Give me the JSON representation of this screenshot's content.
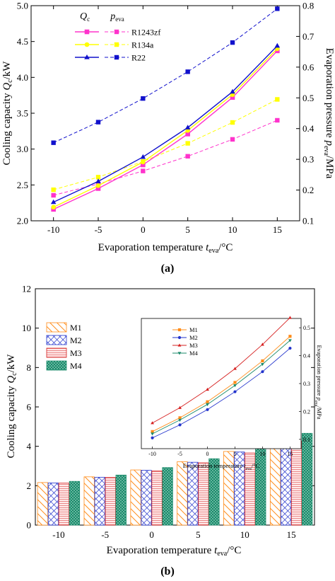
{
  "chart_data": [
    {
      "type": "line",
      "panel_label": "(a)",
      "x": [
        -10,
        -5,
        0,
        5,
        10,
        15
      ],
      "xlabel": "Evaporation temperature",
      "xlabel_sub": "eva",
      "xlabel_unit": "/°C",
      "ylabel_left": "Cooling capacity",
      "ylabel_left_sym": "Q",
      "ylabel_left_sub": "c",
      "ylabel_left_unit": "/kW",
      "ylabel_right": "Evaporation pressure",
      "ylabel_right_sym": "p",
      "ylabel_right_sub": "eva",
      "ylabel_right_unit": "/MPa",
      "xlim": [
        -12.5,
        17.5
      ],
      "ylim_left": [
        2.0,
        5.0
      ],
      "ylim_right": [
        0.1,
        0.8
      ],
      "x_ticks": [
        "-10",
        "-5",
        "0",
        "5",
        "10",
        "15"
      ],
      "y_ticks_left": [
        "2.0",
        "2.5",
        "3.0",
        "3.5",
        "4.0",
        "4.5",
        "5.0"
      ],
      "y_ticks_right": [
        "0.1",
        "0.2",
        "0.3",
        "0.4",
        "0.5",
        "0.6",
        "0.7",
        "0.8"
      ],
      "legend_header_left": "Q",
      "legend_header_left_sub": "c",
      "legend_header_right": "p",
      "legend_header_right_sub": "eva",
      "series": [
        {
          "name": "R1243zf",
          "color": "#ff33cc",
          "marker": "square",
          "capacity": [
            2.16,
            2.45,
            2.78,
            3.21,
            3.72,
            4.37
          ],
          "pressure": [
            0.183,
            0.22,
            0.262,
            0.31,
            0.365,
            0.427
          ]
        },
        {
          "name": "R134a",
          "color": "#ffff00",
          "marker": "circle",
          "capacity": [
            2.19,
            2.49,
            2.82,
            3.26,
            3.76,
            4.4
          ],
          "pressure": [
            0.201,
            0.242,
            0.293,
            0.352,
            0.42,
            0.495
          ]
        },
        {
          "name": "R22",
          "color": "#1111cc",
          "marker": "triangle",
          "capacity": [
            2.26,
            2.55,
            2.89,
            3.3,
            3.8,
            4.44
          ],
          "pressure": [
            0.354,
            0.421,
            0.498,
            0.585,
            0.68,
            0.79
          ]
        }
      ]
    },
    {
      "type": "bar",
      "panel_label": "(b)",
      "categories": [
        "-10",
        "-5",
        "0",
        "5",
        "10",
        "15"
      ],
      "xlabel": "Evaporation temperature",
      "xlabel_sub": "eva",
      "xlabel_unit": "/°C",
      "ylabel": "Cooling capacity",
      "ylabel_sym": "Q",
      "ylabel_sub": "c",
      "ylabel_unit": "/kW",
      "ylim": [
        0,
        12
      ],
      "y_ticks": [
        "0",
        "2",
        "4",
        "6",
        "8",
        "10",
        "12"
      ],
      "series": [
        {
          "name": "M1",
          "color": "#ff8c1a",
          "pattern": "diag",
          "values": [
            2.16,
            2.45,
            2.8,
            3.22,
            3.74,
            4.42
          ]
        },
        {
          "name": "M2",
          "color": "#2233cc",
          "pattern": "cross",
          "values": [
            2.14,
            2.43,
            2.78,
            3.19,
            3.71,
            4.38
          ]
        },
        {
          "name": "M3",
          "color": "#d62020",
          "pattern": "hlines",
          "values": [
            2.13,
            2.42,
            2.75,
            3.16,
            3.66,
            4.27
          ]
        },
        {
          "name": "M4",
          "color": "#1a8a6a",
          "pattern": "dots",
          "values": [
            2.22,
            2.54,
            2.92,
            3.37,
            3.93,
            4.66
          ]
        }
      ],
      "inset": {
        "type": "line",
        "x": [
          -10,
          -5,
          0,
          5,
          10,
          15
        ],
        "x_ticks": [
          "-10",
          "-5",
          "0",
          "5",
          "10",
          "15"
        ],
        "xlim": [
          -12,
          17
        ],
        "ylim": [
          0.15,
          0.5
        ],
        "y_ticks": [
          "0.1",
          "0.2",
          "0.3",
          "0.4",
          "0.5"
        ],
        "xlabel": "Evaporation temperature",
        "xlabel_sub": "eva",
        "xlabel_unit": "/°C",
        "ylabel": "Evaporation pressure",
        "ylabel_sym": "p",
        "ylabel_sub": "eva",
        "ylabel_unit": "/MPa",
        "series": [
          {
            "name": "M1",
            "color": "#ff8c1a",
            "marker": "square",
            "values": [
              0.196,
              0.233,
              0.276,
              0.328,
              0.386,
              0.452
            ]
          },
          {
            "name": "M2",
            "color": "#2233cc",
            "marker": "circle",
            "values": [
              0.179,
              0.214,
              0.255,
              0.303,
              0.357,
              0.42
            ]
          },
          {
            "name": "M3",
            "color": "#d62020",
            "marker": "triangle",
            "values": [
              0.219,
              0.26,
              0.309,
              0.365,
              0.43,
              0.502
            ]
          },
          {
            "name": "M4",
            "color": "#1a8a6a",
            "marker": "tridown",
            "values": [
              0.19,
              0.227,
              0.269,
              0.32,
              0.377,
              0.441
            ]
          }
        ]
      }
    }
  ]
}
